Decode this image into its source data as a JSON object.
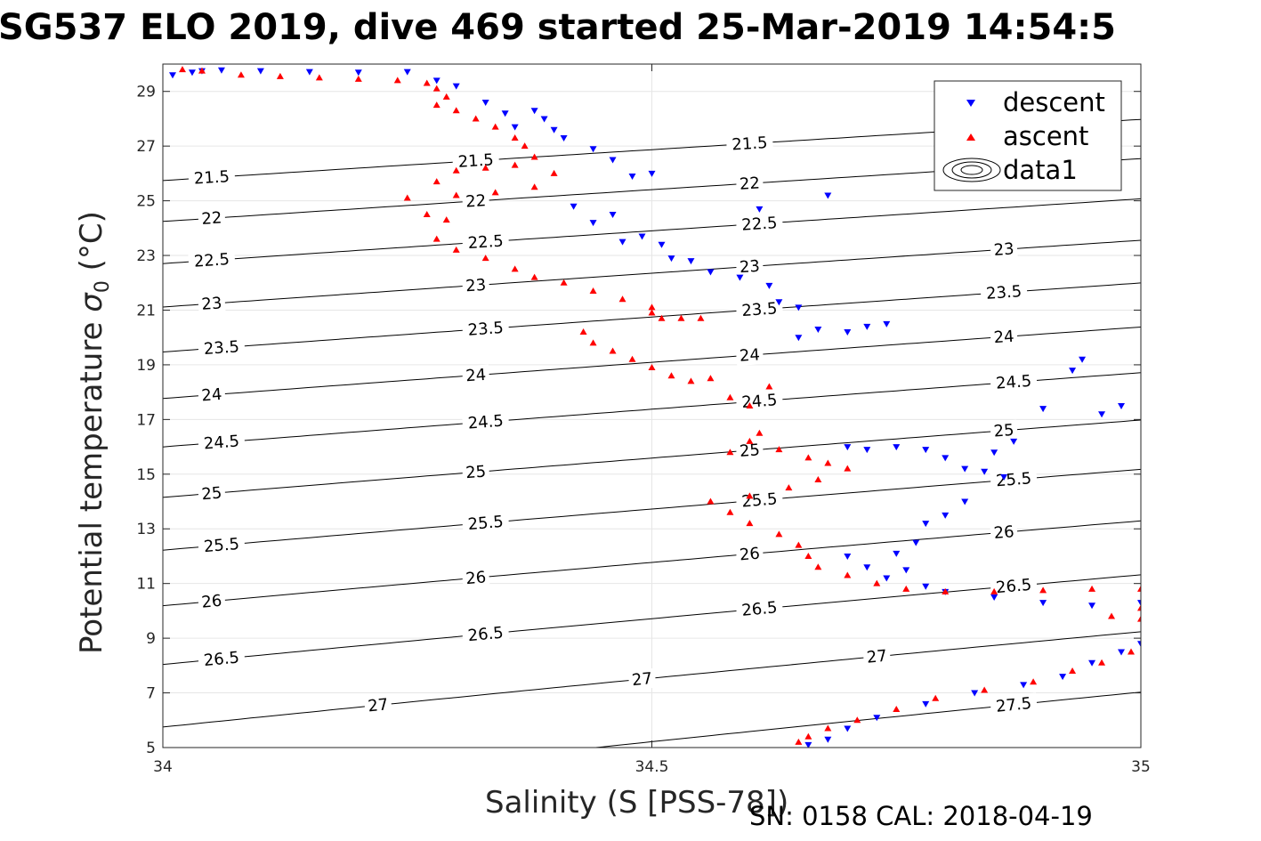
{
  "chart_data": {
    "type": "scatter",
    "title": "SG537 ELO 2019, dive 469 started 25-Mar-2019 14:54:5",
    "xlabel": "Salinity (S [PSS-78])",
    "ylabel": "Potential temperature σ₀ (°C)",
    "ylabel_main": "Potential temperature ",
    "ylabel_sigma": "σ",
    "ylabel_sub": "0",
    "ylabel_unit": " (°C)",
    "footer": "SN: 0158  CAL: 2018-04-19",
    "xlim": [
      34,
      35
    ],
    "ylim": [
      5,
      30
    ],
    "xticks": [
      34,
      34.5,
      35
    ],
    "xtick_labels": [
      "34",
      "34.5",
      "35"
    ],
    "yticks": [
      5,
      7,
      9,
      11,
      13,
      15,
      17,
      19,
      21,
      23,
      25,
      27,
      29
    ],
    "ytick_labels": [
      "5",
      "7",
      "9",
      "11",
      "13",
      "15",
      "17",
      "19",
      "21",
      "23",
      "25",
      "27",
      "29"
    ],
    "grid": true,
    "legend_position": "top-right",
    "legend": [
      {
        "label": "descent",
        "marker": "triangle-down",
        "color": "#0000ff"
      },
      {
        "label": "ascent",
        "marker": "triangle-up",
        "color": "#ff0000"
      },
      {
        "label": "data1",
        "marker": "contour",
        "color": "#000000"
      }
    ],
    "contours": [
      {
        "level": "21.5",
        "label_x": [
          34.05,
          34.32,
          34.6
        ]
      },
      {
        "level": "22",
        "label_x": [
          34.05,
          34.32,
          34.6
        ]
      },
      {
        "level": "22.5",
        "label_x": [
          34.05,
          34.33,
          34.61
        ]
      },
      {
        "level": "23",
        "label_x": [
          34.05,
          34.32,
          34.6,
          34.86
        ]
      },
      {
        "level": "23.5",
        "label_x": [
          34.06,
          34.33,
          34.61,
          34.86
        ]
      },
      {
        "level": "24",
        "label_x": [
          34.05,
          34.32,
          34.6,
          34.86
        ]
      },
      {
        "level": "24.5",
        "label_x": [
          34.06,
          34.33,
          34.61,
          34.87
        ]
      },
      {
        "level": "25",
        "label_x": [
          34.05,
          34.32,
          34.6,
          34.86
        ]
      },
      {
        "level": "25.5",
        "label_x": [
          34.06,
          34.33,
          34.61,
          34.87
        ]
      },
      {
        "level": "26",
        "label_x": [
          34.05,
          34.32,
          34.6,
          34.86
        ]
      },
      {
        "level": "26.5",
        "label_x": [
          34.06,
          34.33,
          34.61,
          34.87
        ]
      },
      {
        "level": "27",
        "label_x": [
          34.22,
          34.49,
          34.73
        ]
      },
      {
        "level": "27.5",
        "label_x": [
          34.87
        ]
      }
    ],
    "series": [
      {
        "name": "descent",
        "color": "#0000ff",
        "marker": "triangle-down",
        "points": [
          [
            34.01,
            29.6
          ],
          [
            34.03,
            29.7
          ],
          [
            34.04,
            29.75
          ],
          [
            34.06,
            29.78
          ],
          [
            34.1,
            29.75
          ],
          [
            34.15,
            29.72
          ],
          [
            34.2,
            29.7
          ],
          [
            34.25,
            29.72
          ],
          [
            34.28,
            29.4
          ],
          [
            34.3,
            29.2
          ],
          [
            34.33,
            28.6
          ],
          [
            34.35,
            28.2
          ],
          [
            34.36,
            27.7
          ],
          [
            34.38,
            28.3
          ],
          [
            34.39,
            28
          ],
          [
            34.4,
            27.6
          ],
          [
            34.41,
            27.3
          ],
          [
            34.44,
            26.9
          ],
          [
            34.46,
            26.5
          ],
          [
            34.48,
            25.9
          ],
          [
            34.5,
            26
          ],
          [
            34.42,
            24.8
          ],
          [
            34.44,
            24.2
          ],
          [
            34.46,
            24.5
          ],
          [
            34.47,
            23.5
          ],
          [
            34.49,
            23.7
          ],
          [
            34.51,
            23.4
          ],
          [
            34.52,
            22.9
          ],
          [
            34.54,
            22.8
          ],
          [
            34.56,
            22.4
          ],
          [
            34.59,
            22.2
          ],
          [
            34.61,
            24.7
          ],
          [
            34.62,
            21.9
          ],
          [
            34.63,
            21.3
          ],
          [
            34.65,
            21.1
          ],
          [
            34.65,
            20
          ],
          [
            34.67,
            20.3
          ],
          [
            34.68,
            25.2
          ],
          [
            34.7,
            20.2
          ],
          [
            34.72,
            20.4
          ],
          [
            34.74,
            20.5
          ],
          [
            34.7,
            16
          ],
          [
            34.72,
            15.9
          ],
          [
            34.75,
            16
          ],
          [
            34.78,
            15.9
          ],
          [
            34.8,
            15.6
          ],
          [
            34.82,
            15.2
          ],
          [
            34.84,
            15.1
          ],
          [
            34.86,
            14.9
          ],
          [
            34.85,
            15.8
          ],
          [
            34.87,
            16.2
          ],
          [
            34.9,
            17.4
          ],
          [
            34.93,
            18.8
          ],
          [
            34.96,
            17.2
          ],
          [
            34.98,
            17.5
          ],
          [
            34.94,
            19.2
          ],
          [
            35.01,
            18.5
          ],
          [
            35.04,
            17.3
          ],
          [
            35.06,
            17.5
          ],
          [
            35.1,
            17.5
          ],
          [
            34.82,
            14
          ],
          [
            34.8,
            13.5
          ],
          [
            34.78,
            13.2
          ],
          [
            34.77,
            12.5
          ],
          [
            34.75,
            12.1
          ],
          [
            34.72,
            11.6
          ],
          [
            34.7,
            12
          ],
          [
            34.74,
            11.2
          ],
          [
            34.76,
            11.5
          ],
          [
            34.78,
            10.9
          ],
          [
            34.8,
            10.7
          ],
          [
            34.85,
            10.5
          ],
          [
            34.9,
            10.3
          ],
          [
            34.95,
            10.2
          ],
          [
            35,
            10.3
          ],
          [
            35.05,
            10.2
          ],
          [
            35.08,
            10.2
          ],
          [
            35.1,
            10.3
          ],
          [
            35.09,
            10
          ],
          [
            35.06,
            9.7
          ],
          [
            35.04,
            9.4
          ],
          [
            35.02,
            9.2
          ],
          [
            35,
            8.8
          ],
          [
            34.98,
            8.5
          ],
          [
            34.95,
            8.1
          ],
          [
            34.92,
            7.6
          ],
          [
            34.88,
            7.3
          ],
          [
            34.83,
            7
          ],
          [
            34.78,
            6.6
          ],
          [
            34.73,
            6.1
          ],
          [
            34.7,
            5.7
          ],
          [
            34.68,
            5.3
          ],
          [
            34.66,
            5.1
          ]
        ]
      },
      {
        "name": "ascent",
        "color": "#ff0000",
        "marker": "triangle-up",
        "points": [
          [
            34.02,
            29.8
          ],
          [
            34.04,
            29.75
          ],
          [
            34.08,
            29.6
          ],
          [
            34.12,
            29.55
          ],
          [
            34.16,
            29.5
          ],
          [
            34.2,
            29.45
          ],
          [
            34.24,
            29.4
          ],
          [
            34.27,
            29.3
          ],
          [
            34.28,
            29.1
          ],
          [
            34.29,
            28.8
          ],
          [
            34.28,
            28.5
          ],
          [
            34.3,
            28.3
          ],
          [
            34.32,
            28
          ],
          [
            34.34,
            27.7
          ],
          [
            34.36,
            27.3
          ],
          [
            34.37,
            27
          ],
          [
            34.38,
            26.6
          ],
          [
            34.36,
            26.3
          ],
          [
            34.33,
            26.2
          ],
          [
            34.3,
            26.1
          ],
          [
            34.28,
            25.7
          ],
          [
            34.4,
            26
          ],
          [
            34.38,
            25.5
          ],
          [
            34.34,
            25.3
          ],
          [
            34.3,
            25.2
          ],
          [
            34.25,
            25.1
          ],
          [
            34.27,
            24.5
          ],
          [
            34.29,
            24.3
          ],
          [
            34.28,
            23.6
          ],
          [
            34.3,
            23.2
          ],
          [
            34.33,
            22.9
          ],
          [
            34.36,
            22.5
          ],
          [
            34.38,
            22.2
          ],
          [
            34.41,
            22
          ],
          [
            34.44,
            21.7
          ],
          [
            34.47,
            21.4
          ],
          [
            34.5,
            21.1
          ],
          [
            34.5,
            20.9
          ],
          [
            34.51,
            20.7
          ],
          [
            34.53,
            20.7
          ],
          [
            34.55,
            20.7
          ],
          [
            34.43,
            20.2
          ],
          [
            34.44,
            19.8
          ],
          [
            34.46,
            19.5
          ],
          [
            34.48,
            19.2
          ],
          [
            34.5,
            18.9
          ],
          [
            34.52,
            18.6
          ],
          [
            34.54,
            18.4
          ],
          [
            34.56,
            18.5
          ],
          [
            34.58,
            17.8
          ],
          [
            34.6,
            17.5
          ],
          [
            34.62,
            18.2
          ],
          [
            34.6,
            16.2
          ],
          [
            34.58,
            15.8
          ],
          [
            34.61,
            16.5
          ],
          [
            34.63,
            15.9
          ],
          [
            34.66,
            15.6
          ],
          [
            34.68,
            15.4
          ],
          [
            34.7,
            15.2
          ],
          [
            34.67,
            14.8
          ],
          [
            34.64,
            14.5
          ],
          [
            34.6,
            14.2
          ],
          [
            34.56,
            14
          ],
          [
            34.58,
            13.6
          ],
          [
            34.6,
            13.2
          ],
          [
            34.63,
            12.8
          ],
          [
            34.65,
            12.4
          ],
          [
            34.66,
            12
          ],
          [
            34.67,
            11.6
          ],
          [
            34.7,
            11.3
          ],
          [
            34.73,
            11
          ],
          [
            34.76,
            10.8
          ],
          [
            34.8,
            10.7
          ],
          [
            34.85,
            10.7
          ],
          [
            34.9,
            10.75
          ],
          [
            34.95,
            10.8
          ],
          [
            35,
            10.8
          ],
          [
            35.05,
            10.75
          ],
          [
            35.03,
            10.4
          ],
          [
            35,
            10.1
          ],
          [
            34.97,
            9.8
          ],
          [
            35,
            9.7
          ],
          [
            35.03,
            9.3
          ],
          [
            35.05,
            9.2
          ],
          [
            35.02,
            8.9
          ],
          [
            34.99,
            8.5
          ],
          [
            34.96,
            8.1
          ],
          [
            34.93,
            7.8
          ],
          [
            34.89,
            7.4
          ],
          [
            34.84,
            7.1
          ],
          [
            34.79,
            6.8
          ],
          [
            34.75,
            6.4
          ],
          [
            34.71,
            6
          ],
          [
            34.68,
            5.7
          ],
          [
            34.66,
            5.4
          ],
          [
            34.65,
            5.2
          ]
        ]
      }
    ]
  }
}
